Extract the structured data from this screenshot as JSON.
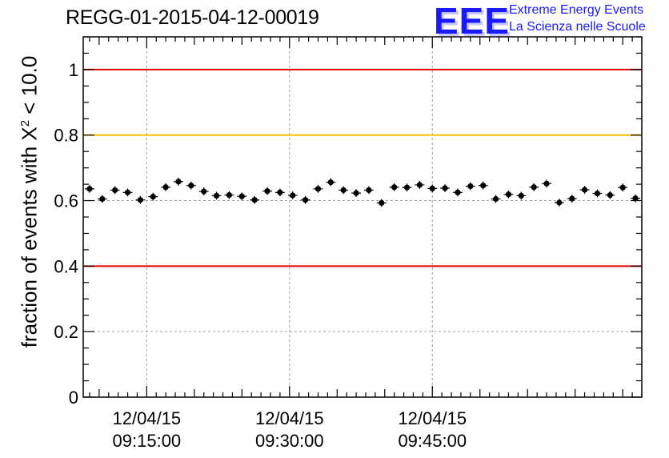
{
  "title": "REGG-01-2015-04-12-00019",
  "logo": {
    "mark": "EEE",
    "line1": "Extreme Energy Events",
    "line2": "La Scienza nelle Scuole",
    "color": "#1a1aff"
  },
  "chart_data": {
    "type": "scatter",
    "title": "REGG-01-2015-04-12-00019",
    "ylabel_prefix": "fraction of events with Χ",
    "ylabel_sup": "2",
    "ylabel_suffix": " < 10.0",
    "xlabel": "",
    "ylim": [
      0,
      1.1
    ],
    "yticks": [
      "0",
      "0.2",
      "0.4",
      "0.6",
      "0.8",
      "1"
    ],
    "ytick_values": [
      0,
      0.2,
      0.4,
      0.6,
      0.8,
      1.0
    ],
    "xlim_minutes": [
      8.33,
      67.0
    ],
    "xticks": [
      {
        "minute": 15,
        "line1": "12/04/15",
        "line2": "09:15:00"
      },
      {
        "minute": 30,
        "line1": "12/04/15",
        "line2": "09:30:00"
      },
      {
        "minute": 45,
        "line1": "12/04/15",
        "line2": "09:45:00"
      }
    ],
    "grid": true,
    "reference_lines": [
      {
        "y": 1.0,
        "color": "#e00000"
      },
      {
        "y": 0.8,
        "color": "#ffc000"
      },
      {
        "y": 0.4,
        "color": "#e00000"
      }
    ],
    "series": [
      {
        "marker_color": "#000000",
        "x_half_width": 0.5,
        "y_error": 0.012,
        "y": [
          0.636,
          0.605,
          0.632,
          0.625,
          0.602,
          0.612,
          0.641,
          0.658,
          0.646,
          0.628,
          0.615,
          0.617,
          0.613,
          0.602,
          0.629,
          0.625,
          0.616,
          0.602,
          0.636,
          0.656,
          0.632,
          0.623,
          0.632,
          0.593,
          0.641,
          0.64,
          0.648,
          0.637,
          0.638,
          0.625,
          0.644,
          0.646,
          0.605,
          0.619,
          0.615,
          0.641,
          0.652,
          0.594,
          0.606,
          0.633,
          0.622,
          0.617,
          0.64,
          0.607
        ]
      }
    ]
  }
}
